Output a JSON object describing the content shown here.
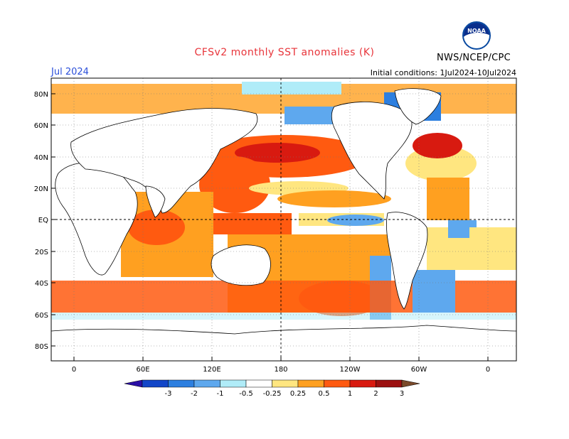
{
  "header": {
    "title": "CFSv2 monthly SST anomalies (K)",
    "month": "Jul 2024",
    "initial_conditions": "Initial conditions: 1Jul2024-10Jul2024",
    "agency": "NWS/NCEP/CPC",
    "logo_text": "NOAA"
  },
  "map": {
    "lat_labels": [
      "80N",
      "60N",
      "40N",
      "20N",
      "EQ",
      "20S",
      "40S",
      "60S",
      "80S"
    ],
    "lon_labels": [
      "0",
      "60E",
      "120E",
      "180",
      "120W",
      "60W",
      "0"
    ]
  },
  "colorbar": {
    "labels": [
      "-3",
      "-2",
      "-1",
      "-0.5",
      "-0.25",
      "0.25",
      "0.5",
      "1",
      "2",
      "3"
    ],
    "colors": [
      "#2a0fa6",
      "#1246c8",
      "#2c7fe0",
      "#5ea8ee",
      "#b0ecf8",
      "#ffffff",
      "#ffe680",
      "#ffa020",
      "#ff5a10",
      "#d81a10",
      "#9c1010",
      "#7a4a2a"
    ]
  }
}
